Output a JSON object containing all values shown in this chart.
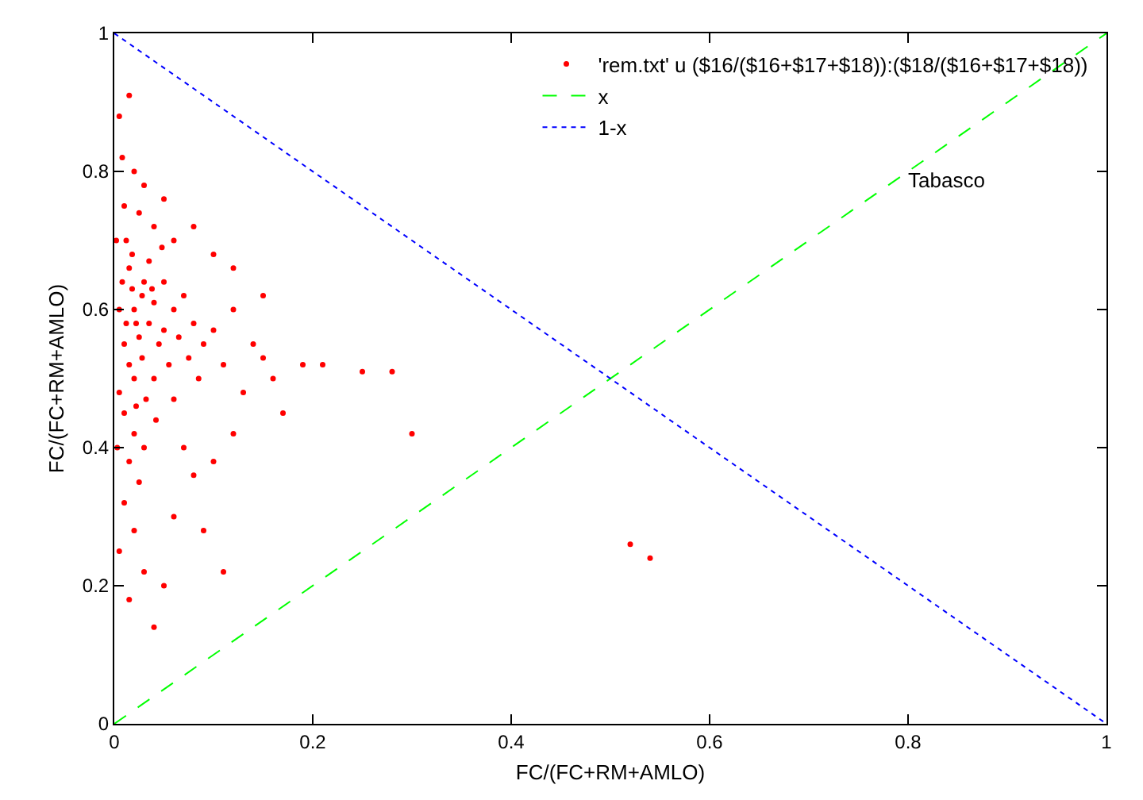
{
  "chart_data": {
    "type": "scatter",
    "xlabel": "FC/(FC+RM+AMLO)",
    "ylabel": "FC/(FC+RM+AMLO)",
    "annotations": [
      "Tabasco"
    ],
    "xlim": [
      0,
      1
    ],
    "ylim": [
      0,
      1
    ],
    "xticks": [
      0,
      0.2,
      0.4,
      0.6,
      0.8,
      1
    ],
    "yticks": [
      0,
      0.2,
      0.4,
      0.6,
      0.8,
      1
    ],
    "grid": false,
    "legend": "top right",
    "series": [
      {
        "name": "'rem.txt' u ($16/($16+$17+$18)):($18/($16+$17+$18))",
        "marker": "circle",
        "color": "#ff0000",
        "x": [
          0.005,
          0.008,
          0.01,
          0.012,
          0.015,
          0.018,
          0.02,
          0.022,
          0.025,
          0.028,
          0.03,
          0.01,
          0.015,
          0.02,
          0.005,
          0.01,
          0.02,
          0.03,
          0.015,
          0.025,
          0.01,
          0.02,
          0.005,
          0.03,
          0.015,
          0.035,
          0.04,
          0.045,
          0.04,
          0.05,
          0.035,
          0.04,
          0.03,
          0.02,
          0.025,
          0.05,
          0.06,
          0.055,
          0.06,
          0.065,
          0.07,
          0.075,
          0.08,
          0.085,
          0.09,
          0.1,
          0.11,
          0.12,
          0.13,
          0.14,
          0.15,
          0.16,
          0.17,
          0.19,
          0.21,
          0.25,
          0.28,
          0.3,
          0.52,
          0.54,
          0.07,
          0.08,
          0.1,
          0.12,
          0.06,
          0.09,
          0.05,
          0.11,
          0.04,
          0.1,
          0.08,
          0.06,
          0.12,
          0.15,
          0.05,
          0.015,
          0.005,
          0.008,
          0.012,
          0.018,
          0.022,
          0.032,
          0.042,
          0.028,
          0.038,
          0.048,
          0.002,
          0.003
        ],
        "values": [
          0.88,
          0.82,
          0.75,
          0.7,
          0.66,
          0.63,
          0.6,
          0.58,
          0.56,
          0.62,
          0.64,
          0.55,
          0.52,
          0.5,
          0.48,
          0.45,
          0.42,
          0.4,
          0.38,
          0.35,
          0.32,
          0.28,
          0.25,
          0.22,
          0.18,
          0.58,
          0.61,
          0.55,
          0.5,
          0.57,
          0.67,
          0.72,
          0.78,
          0.8,
          0.74,
          0.64,
          0.6,
          0.52,
          0.47,
          0.56,
          0.62,
          0.53,
          0.58,
          0.5,
          0.55,
          0.57,
          0.52,
          0.6,
          0.48,
          0.55,
          0.53,
          0.5,
          0.45,
          0.52,
          0.52,
          0.51,
          0.51,
          0.42,
          0.26,
          0.24,
          0.4,
          0.36,
          0.38,
          0.42,
          0.3,
          0.28,
          0.2,
          0.22,
          0.14,
          0.68,
          0.72,
          0.7,
          0.66,
          0.62,
          0.76,
          0.91,
          0.6,
          0.64,
          0.58,
          0.68,
          0.46,
          0.47,
          0.44,
          0.53,
          0.63,
          0.69,
          0.7,
          0.4
        ]
      },
      {
        "name": "x",
        "type": "line",
        "line_style": "dashed",
        "color": "#00ff00",
        "x": [
          0,
          1
        ],
        "values": [
          0,
          1
        ]
      },
      {
        "name": "1-x",
        "type": "line",
        "line_style": "dotted",
        "color": "#0000ff",
        "x": [
          0,
          1
        ],
        "values": [
          1,
          0
        ]
      }
    ]
  }
}
